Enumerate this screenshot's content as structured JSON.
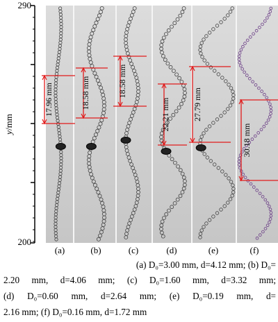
{
  "axis": {
    "ylabel_var": "y",
    "ylabel_unit": "/mm",
    "ymax": "290",
    "ymin": "200"
  },
  "panels": [
    {
      "label": "(a)",
      "measure": "17.96 mm",
      "dots": "#444444"
    },
    {
      "label": "(b)",
      "measure": "18.58 mm",
      "dots": "#444444"
    },
    {
      "label": "(c)",
      "measure": "18.58 mm",
      "dots": "#444444"
    },
    {
      "label": "(d)",
      "measure": "22.21 mm",
      "dots": "#444444"
    },
    {
      "label": "(e)",
      "measure": "27.79 mm",
      "dots": "#444444"
    },
    {
      "label": "(f)",
      "measure": "30.18 mm",
      "dots": "#6b3d86"
    }
  ],
  "colors": {
    "measure": "#e11b1b",
    "panel_bg": "#d2d2d2"
  },
  "caption": {
    "line1": "(a)  D₀=3.00  mm,  d=4.12  mm;  (b)  D₀=",
    "line2": "2.20 mm, d=4.06 mm; (c) D₀=1.60 mm, d=3.32 mm;",
    "line3": "(d) D₀=0.60 mm, d=2.64 mm; (e) D₀=0.19 mm, d=",
    "line4": "2.16 mm; (f) D₀=0.16 mm, d=1.72 mm"
  }
}
